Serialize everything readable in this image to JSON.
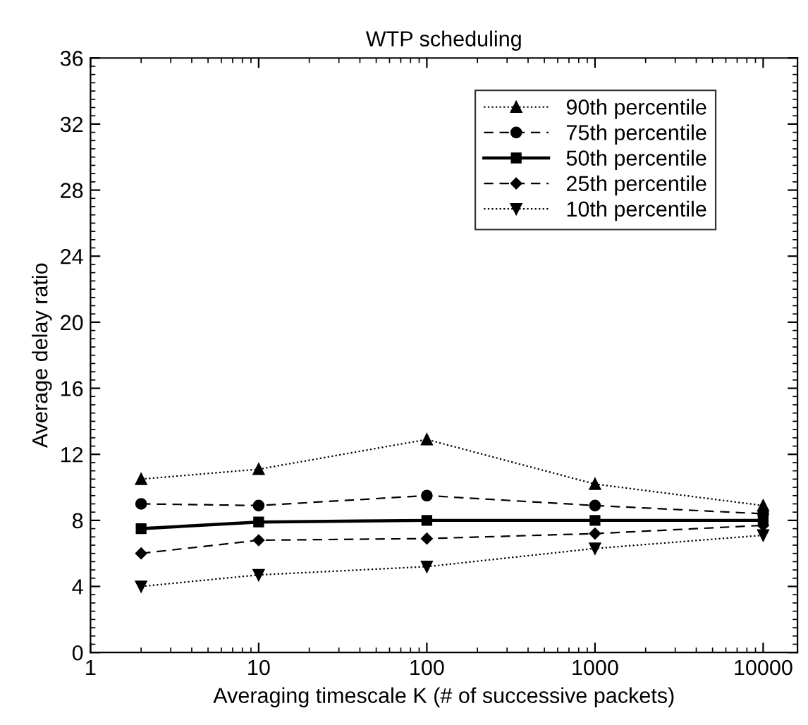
{
  "chart_data": {
    "type": "line",
    "title": "WTP scheduling",
    "xlabel": "Averaging timescale K (# of successive packets)",
    "ylabel": "Average delay ratio",
    "x": [
      2,
      10,
      100,
      1000,
      10000
    ],
    "log": "x",
    "xlim": [
      1,
      16000
    ],
    "xticks": [
      1,
      10,
      100,
      1000,
      10000
    ],
    "ylim": [
      0,
      36
    ],
    "yticks": [
      0,
      4,
      8,
      12,
      16,
      20,
      24,
      28,
      32,
      36
    ],
    "grid": false,
    "legend": "top right",
    "series": [
      {
        "name": "90th percentile",
        "color": "#000000",
        "marker": "triangle",
        "line_style": "dotted",
        "values": [
          10.5,
          11.1,
          12.9,
          10.2,
          8.9
        ]
      },
      {
        "name": "75th percentile",
        "color": "#000000",
        "marker": "circle",
        "line_style": "dashed",
        "values": [
          9.0,
          8.9,
          9.5,
          8.9,
          8.4
        ]
      },
      {
        "name": "50th percentile",
        "color": "#000000",
        "marker": "square",
        "line_style": "solid",
        "values": [
          7.5,
          7.9,
          8.0,
          8.0,
          8.0
        ]
      },
      {
        "name": "25th percentile",
        "color": "#000000",
        "marker": "diamond",
        "line_style": "dashed",
        "values": [
          6.0,
          6.8,
          6.9,
          7.2,
          7.7
        ]
      },
      {
        "name": "10th percentile",
        "color": "#000000",
        "marker": "triangle_down",
        "line_style": "dotted",
        "values": [
          4.0,
          4.7,
          5.2,
          6.3,
          7.1
        ]
      }
    ]
  }
}
